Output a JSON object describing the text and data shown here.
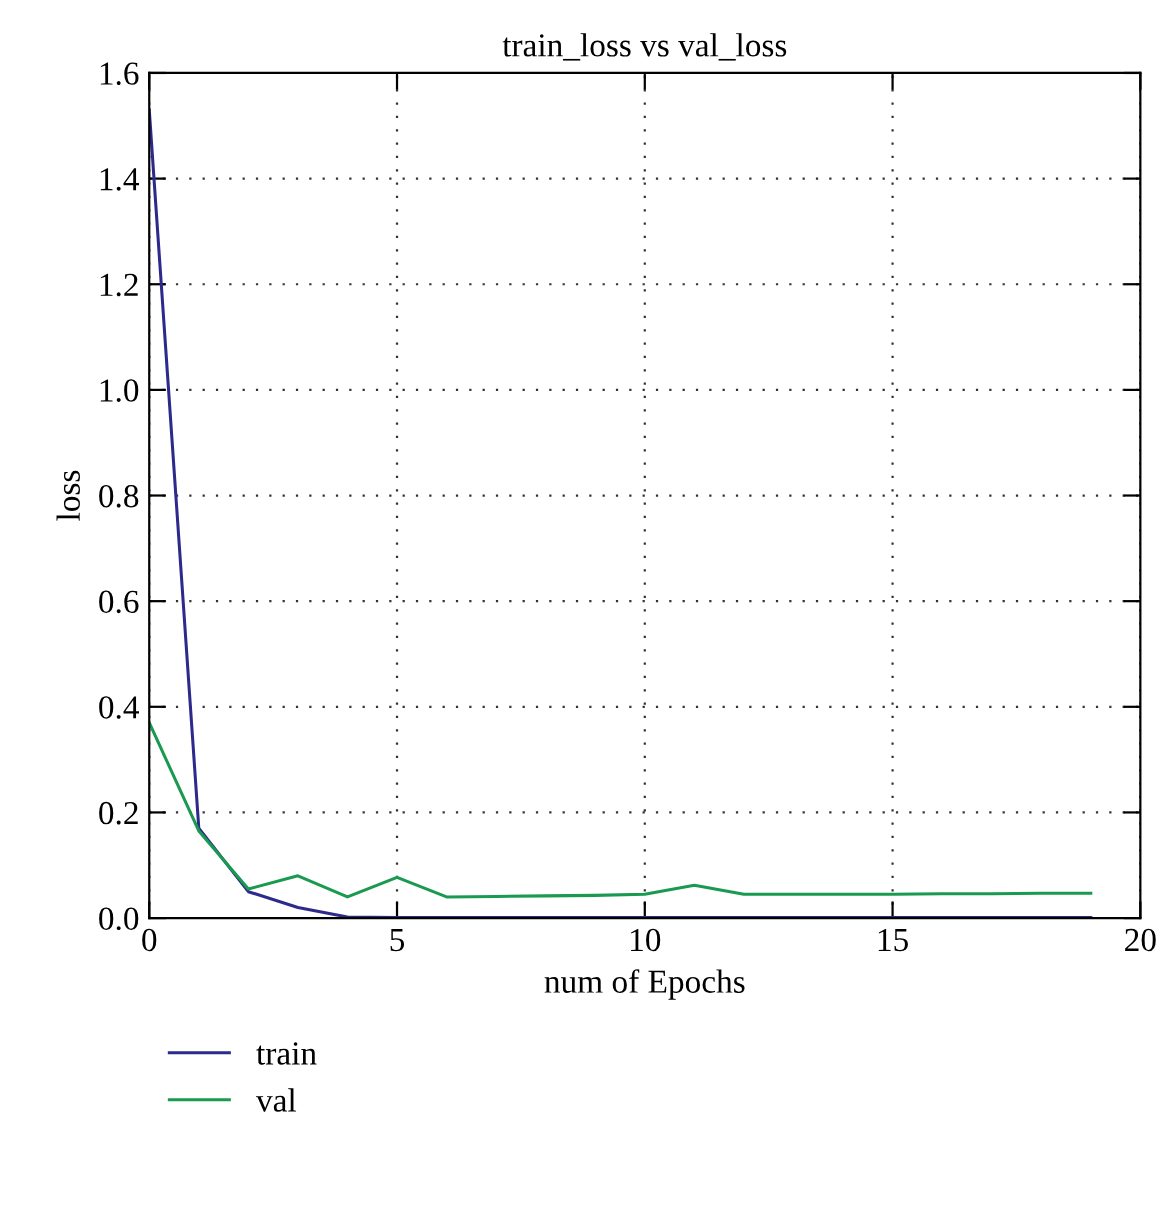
{
  "chart_data": {
    "type": "line",
    "title": "train_loss vs val_loss",
    "xlabel": "num of Epochs",
    "ylabel": "loss",
    "x": [
      0,
      1,
      2,
      3,
      4,
      5,
      6,
      7,
      8,
      9,
      10,
      11,
      12,
      13,
      14,
      15,
      16,
      17,
      18,
      19
    ],
    "series": [
      {
        "name": "train",
        "color": "#2e2a8c",
        "values": [
          1.53,
          0.17,
          0.05,
          0.02,
          0.002,
          0.001,
          0.001,
          0.001,
          0.001,
          0.001,
          0.001,
          0.001,
          0.001,
          0.001,
          0.001,
          0.001,
          0.001,
          0.001,
          0.001,
          0.001
        ]
      },
      {
        "name": "val",
        "color": "#1a9a50",
        "values": [
          0.37,
          0.165,
          0.055,
          0.08,
          0.04,
          0.077,
          0.04,
          0.041,
          0.042,
          0.043,
          0.045,
          0.062,
          0.045,
          0.045,
          0.045,
          0.045,
          0.046,
          0.046,
          0.047,
          0.047
        ]
      }
    ],
    "xlim": [
      0,
      20
    ],
    "ylim": [
      0,
      1.6
    ],
    "xticks": [
      0,
      5,
      10,
      15,
      20
    ],
    "yticks": [
      {
        "value": 0,
        "label": "0.0"
      },
      {
        "value": 0.2,
        "label": "0.2"
      },
      {
        "value": 0.4,
        "label": "0.4"
      },
      {
        "value": 0.6,
        "label": "0.6"
      },
      {
        "value": 0.8,
        "label": "0.8"
      },
      {
        "value": 1.0,
        "label": "1.0"
      },
      {
        "value": 1.2,
        "label": "1.2"
      },
      {
        "value": 1.4,
        "label": "1.4"
      },
      {
        "value": 1.6,
        "label": "1.6"
      }
    ],
    "grid": true,
    "legend": "bottom left",
    "marker": "none",
    "line_style": "solid"
  }
}
